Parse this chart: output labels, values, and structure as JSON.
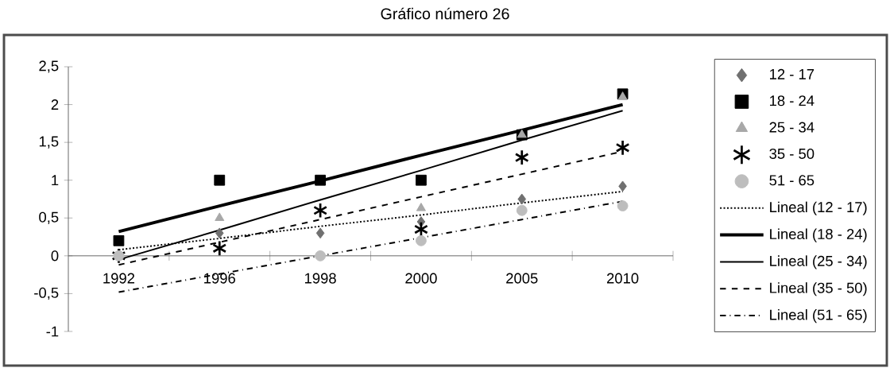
{
  "chart_data": {
    "type": "scatter",
    "title": "Gráfico número 26",
    "categories": [
      "1992",
      "1996",
      "1998",
      "2000",
      "2005",
      "2010"
    ],
    "ylim": [
      -1,
      2.5
    ],
    "yticks": [
      -1,
      {
        "value": -0.5,
        "label": "-0,5"
      },
      0,
      {
        "value": 0.5,
        "label": "0,5"
      },
      1,
      {
        "value": 1.5,
        "label": "1,5"
      },
      2,
      {
        "value": 2.5,
        "label": "2,5"
      }
    ],
    "legend": "right",
    "series": [
      {
        "name": "12 - 17",
        "type": "scatter",
        "marker": "diamond",
        "color": "#707070",
        "values": [
          null,
          0.3,
          0.3,
          0.45,
          0.75,
          0.92
        ]
      },
      {
        "name": "18 - 24",
        "type": "scatter",
        "marker": "square",
        "color": "#000000",
        "values": [
          0.2,
          1,
          1,
          1,
          1.6,
          2.14
        ]
      },
      {
        "name": "25 - 34",
        "type": "scatter",
        "marker": "triangle",
        "color": "#a8a8a8",
        "values": [
          null,
          0.5,
          null,
          0.63,
          1.6,
          2.1
        ]
      },
      {
        "name": "35 - 50",
        "type": "scatter",
        "marker": "cross",
        "color": "#000000",
        "values": [
          0,
          0.1,
          0.6,
          0.35,
          1.3,
          1.43
        ]
      },
      {
        "name": "51 - 65",
        "type": "scatter",
        "marker": "circle",
        "color": "#bdbdbd",
        "values": [
          0,
          null,
          0,
          0.2,
          0.6,
          0.66
        ]
      },
      {
        "name": "Lineal (12 - 17)",
        "type": "line",
        "marker": "none",
        "line_style": "dotted",
        "color": "#000000",
        "values": [
          0.08,
          0.23,
          0.39,
          0.54,
          0.7,
          0.85
        ]
      },
      {
        "name": "Lineal (18 - 24)",
        "type": "line",
        "marker": "none",
        "line_style": "solid",
        "color": "#000000",
        "values": [
          0.32,
          0.66,
          0.99,
          1.33,
          1.66,
          2.0
        ]
      },
      {
        "name": "Lineal (25 - 34)",
        "type": "line",
        "marker": "none",
        "line_style": "solid",
        "color": "#000000",
        "values": [
          -0.05,
          0.34,
          0.74,
          1.13,
          1.53,
          1.92
        ]
      },
      {
        "name": "Lineal (35 - 50)",
        "type": "line",
        "marker": "none",
        "line_style": "dashed",
        "color": "#000000",
        "values": [
          -0.12,
          0.18,
          0.48,
          0.78,
          1.08,
          1.38
        ]
      },
      {
        "name": "Lineal (51 - 65)",
        "type": "line",
        "marker": "none",
        "line_style": "dashdot",
        "color": "#000000",
        "values": [
          -0.48,
          -0.24,
          0,
          0.24,
          0.48,
          0.72
        ]
      }
    ]
  }
}
